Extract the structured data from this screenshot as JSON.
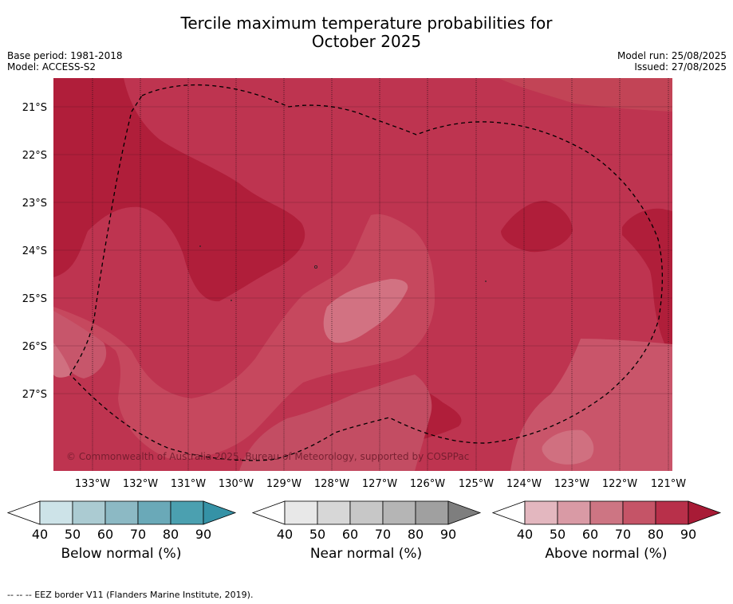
{
  "header": {
    "title_line1": "Tercile maximum temperature probabilities for",
    "title_line2": "October 2025",
    "base_period": "Base period: 1981-2018",
    "model": "Model: ACCESS-S2",
    "model_run": "Model run: 25/08/2025",
    "issued": "Issued: 27/08/2025"
  },
  "map": {
    "lat_labels": [
      "21°S",
      "22°S",
      "23°S",
      "24°S",
      "25°S",
      "26°S",
      "27°S"
    ],
    "lon_labels": [
      "133°W",
      "132°W",
      "131°W",
      "130°W",
      "129°W",
      "128°W",
      "127°W",
      "126°W",
      "125°W",
      "124°W",
      "123°W",
      "122°W",
      "121°W"
    ],
    "copyright": "© Commonwealth of Australia 2025, Bureau of Meteorology, supported by COSPPac",
    "colors": {
      "above_80": "#b01e3a",
      "above_70": "#be3450",
      "above_60": "#c8566b",
      "above_50": "#d07080"
    }
  },
  "legends": [
    {
      "label": "Below normal (%)",
      "ticks": [
        "40",
        "50",
        "60",
        "70",
        "80",
        "90"
      ],
      "colors": [
        "#cde3e8",
        "#abcbd2",
        "#8cb9c4",
        "#6aa9b8",
        "#4ba0b0",
        "#3592a6"
      ]
    },
    {
      "label": "Near normal (%)",
      "ticks": [
        "40",
        "50",
        "60",
        "70",
        "80",
        "90"
      ],
      "colors": [
        "#e8e8e8",
        "#d7d7d7",
        "#c7c7c7",
        "#b5b5b5",
        "#a0a0a0",
        "#7e7e7e"
      ]
    },
    {
      "label": "Above normal (%)",
      "ticks": [
        "40",
        "50",
        "60",
        "70",
        "80",
        "90"
      ],
      "colors": [
        "#e3b7bf",
        "#d99aa5",
        "#cd7583",
        "#c55467",
        "#b8304a",
        "#a81b36"
      ]
    }
  ],
  "footer": {
    "eez_note": "--  --  -- EEZ border V11 (Flanders Marine Institute, 2019)."
  }
}
